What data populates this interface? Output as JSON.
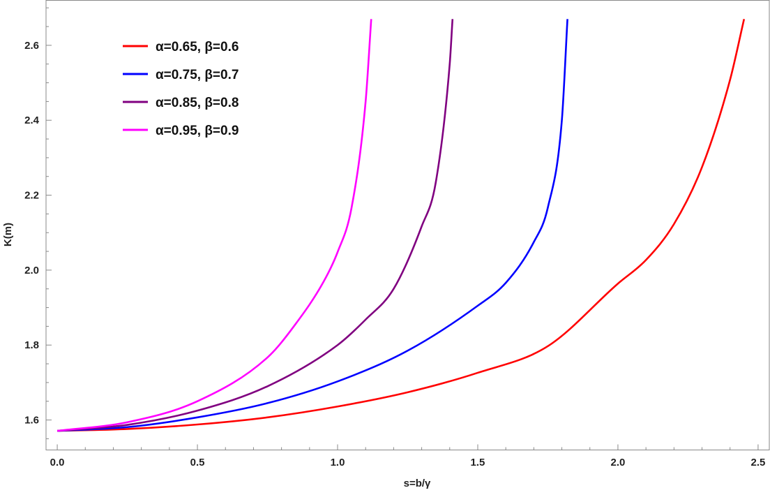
{
  "chart_data": {
    "type": "line",
    "xlabel": "s=b/γ",
    "ylabel": "K(m)",
    "xlim": [
      -0.04,
      2.54
    ],
    "ylim": [
      1.52,
      2.72
    ],
    "x_ticks": [
      0.0,
      0.5,
      1.0,
      1.5,
      2.0,
      2.5
    ],
    "x_tick_labels": [
      "0.0",
      "0.5",
      "1.0",
      "1.5",
      "2.0",
      "2.5"
    ],
    "y_ticks": [
      1.6,
      1.8,
      2.0,
      2.2,
      2.4,
      2.6
    ],
    "y_tick_labels": [
      "1.6",
      "1.8",
      "2.0",
      "2.2",
      "2.4",
      "2.6"
    ],
    "grid": false,
    "legend_position": "top-left",
    "series": [
      {
        "name": "α=0.65, β=0.6",
        "color": "#ff0000",
        "x": [
          0.0,
          0.25,
          0.5,
          0.75,
          1.0,
          1.25,
          1.5,
          1.75,
          2.0,
          2.1,
          2.2,
          2.3,
          2.4,
          2.45
        ],
        "y": [
          1.571,
          1.576,
          1.588,
          1.607,
          1.636,
          1.674,
          1.726,
          1.797,
          1.964,
          2.027,
          2.123,
          2.275,
          2.508,
          2.67
        ]
      },
      {
        "name": "α=0.75, β=0.7",
        "color": "#0000ff",
        "x": [
          0.0,
          0.25,
          0.5,
          0.75,
          1.0,
          1.25,
          1.5,
          1.6,
          1.7,
          1.75,
          1.8,
          1.82
        ],
        "y": [
          1.571,
          1.581,
          1.607,
          1.645,
          1.703,
          1.785,
          1.905,
          1.966,
          2.075,
          2.167,
          2.4,
          2.67
        ]
      },
      {
        "name": "α=0.85, β=0.8",
        "color": "#800080",
        "x": [
          0.0,
          0.25,
          0.5,
          0.75,
          1.0,
          1.1,
          1.2,
          1.3,
          1.35,
          1.4,
          1.41
        ],
        "y": [
          1.571,
          1.587,
          1.625,
          1.69,
          1.8,
          1.868,
          1.95,
          2.117,
          2.233,
          2.55,
          2.67
        ]
      },
      {
        "name": "α=0.95, β=0.9",
        "color": "#ff00ff",
        "x": [
          0.0,
          0.25,
          0.5,
          0.75,
          0.85,
          0.95,
          1.0,
          1.05,
          1.1,
          1.12
        ],
        "y": [
          1.571,
          1.594,
          1.65,
          1.767,
          1.856,
          1.969,
          2.048,
          2.167,
          2.45,
          2.67
        ]
      }
    ]
  }
}
